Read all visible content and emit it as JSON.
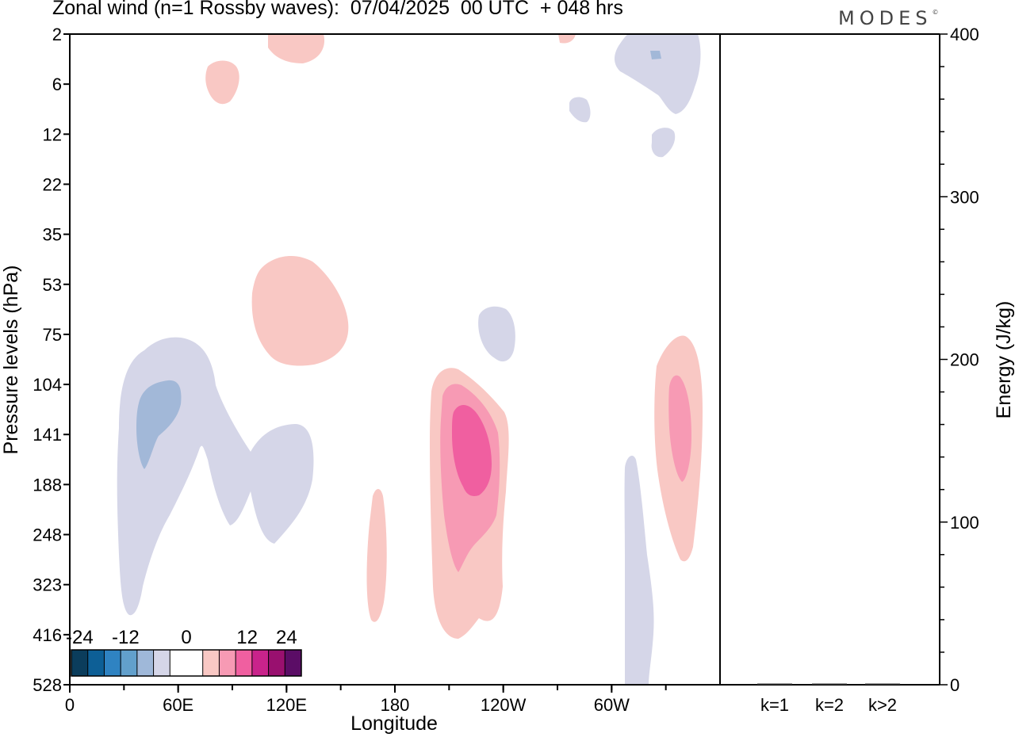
{
  "header": {
    "title": "Zonal wind (n=1 Rossby waves):  07/04/2025  00 UTC  + 048 hrs",
    "brand": "MODES",
    "brand_mark": "©"
  },
  "chart_data": [
    {
      "type": "heatmap",
      "title": "Zonal wind (n=1 Rossby waves):  07/04/2025  00 UTC  + 048 hrs",
      "xlabel": "Longitude",
      "ylabel": "Pressure levels (hPa)",
      "x_ticks": [
        "0",
        "60E",
        "120E",
        "180",
        "120W",
        "60W"
      ],
      "x_tick_degrees": [
        0,
        60,
        120,
        180,
        240,
        300
      ],
      "xlim": [
        0,
        360
      ],
      "y_ticks": [
        "2",
        "6",
        "12",
        "22",
        "35",
        "53",
        "75",
        "104",
        "141",
        "188",
        "248",
        "323",
        "416",
        "528"
      ],
      "y_axis": "pressure levels, top to bottom",
      "colorbar": {
        "labels": [
          "-24",
          "-12",
          "0",
          "12",
          "24"
        ],
        "label_index": [
          0,
          3,
          6,
          9,
          12
        ],
        "colors": [
          "#0b3d5c",
          "#0d5f96",
          "#2f83c2",
          "#62a0cc",
          "#9fb8d9",
          "#d5d6e8",
          "#ffffff",
          "#ffffff",
          "#f9c8c4",
          "#f79ab4",
          "#f05fa0",
          "#c9238b",
          "#99106f",
          "#5b0d66"
        ]
      },
      "features": [
        {
          "sign": "negative",
          "level": -4,
          "lon": 82,
          "level_hpa": 150,
          "note": "broad weak easterly anomaly"
        },
        {
          "sign": "negative",
          "level": -8,
          "lon": 36,
          "level_hpa": 130
        },
        {
          "sign": "positive",
          "level": 4,
          "lon": 120,
          "level_hpa": 65
        },
        {
          "sign": "positive",
          "level": 12,
          "lon": 226,
          "level_hpa": 150
        },
        {
          "sign": "positive",
          "level": 4,
          "lon": 168,
          "level_hpa": 280
        },
        {
          "sign": "negative",
          "level": -4,
          "lon": 317,
          "level_hpa": 350
        },
        {
          "sign": "positive",
          "level": 8,
          "lon": 337,
          "level_hpa": 140
        },
        {
          "sign": "negative",
          "level": -4,
          "lon": 320,
          "level_hpa": 4
        },
        {
          "sign": "negative",
          "level": -4,
          "lon": 234,
          "level_hpa": 80
        }
      ]
    },
    {
      "type": "bar",
      "categories": [
        "k=1",
        "k=2",
        "k>2"
      ],
      "values": [
        0,
        0,
        0
      ],
      "ylabel": "Energy (J/kg)",
      "ylim": [
        0,
        400
      ],
      "y_ticks": [
        "0",
        "100",
        "200",
        "300",
        "400"
      ]
    }
  ]
}
